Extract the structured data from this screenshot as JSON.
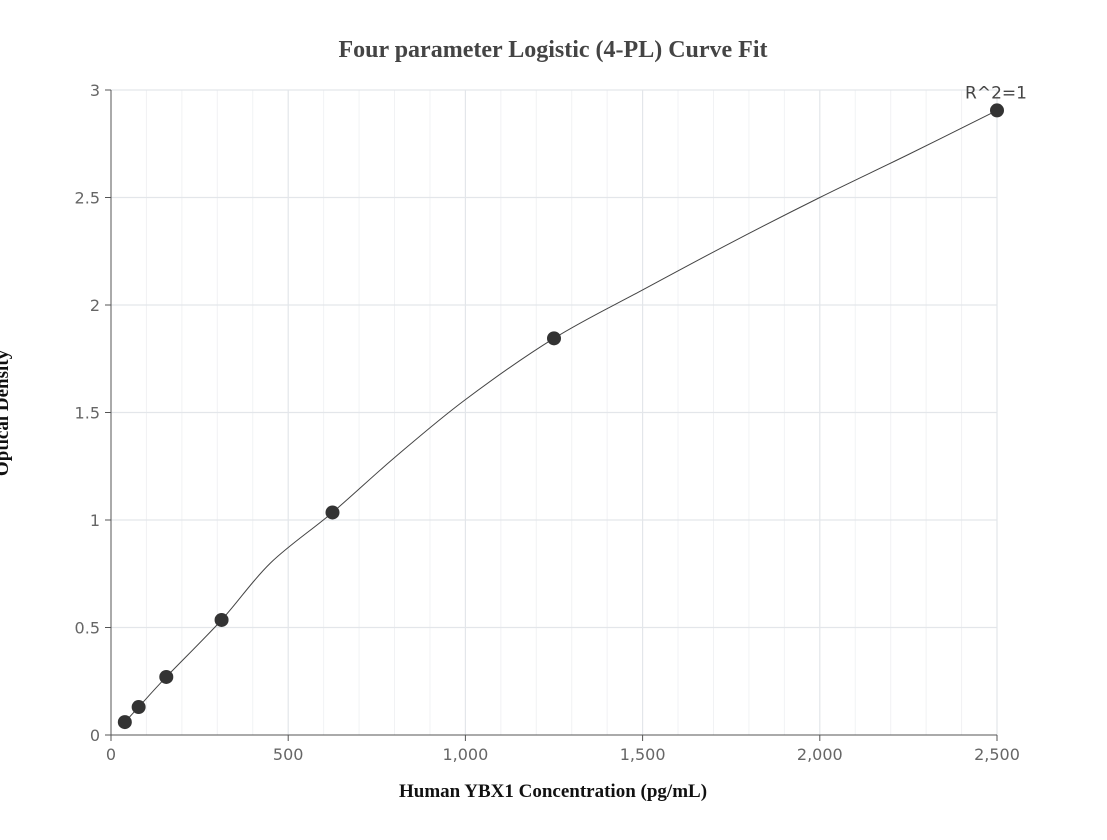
{
  "chart_data": {
    "type": "scatter",
    "title": "Four parameter Logistic (4-PL) Curve Fit",
    "xlabel": "Human YBX1 Concentration (pg/mL)",
    "ylabel": "Optical Density",
    "xlim": [
      0,
      2500
    ],
    "ylim": [
      0,
      3
    ],
    "x_ticks": [
      0,
      500,
      1000,
      1500,
      2000,
      2500
    ],
    "x_tick_labels": [
      "0",
      "500",
      "1,000",
      "1,500",
      "2,000",
      "2,500"
    ],
    "y_ticks": [
      0,
      0.5,
      1,
      1.5,
      2,
      2.5,
      3
    ],
    "y_tick_labels": [
      "0",
      "0.5",
      "1",
      "1.5",
      "2",
      "2.5",
      "3"
    ],
    "grid": true,
    "series": [
      {
        "x": [
          39,
          78,
          156,
          312,
          625,
          1250,
          2500
        ],
        "y": [
          0.06,
          0.13,
          0.27,
          0.535,
          1.035,
          1.845,
          2.905
        ]
      }
    ],
    "fit_curve": {
      "x": [
        39,
        78,
        156,
        312,
        450,
        625,
        800,
        1000,
        1250,
        1500,
        1750,
        2000,
        2250,
        2500
      ],
      "y": [
        0.06,
        0.13,
        0.27,
        0.535,
        0.8,
        1.035,
        1.29,
        1.56,
        1.845,
        2.07,
        2.29,
        2.5,
        2.7,
        2.905
      ]
    },
    "annotation": {
      "text": "R^2=1",
      "x": 2500,
      "y": 2.905
    },
    "colors": {
      "points": "#333333",
      "curve": "#444444",
      "grid": "#e3e6ea"
    }
  }
}
